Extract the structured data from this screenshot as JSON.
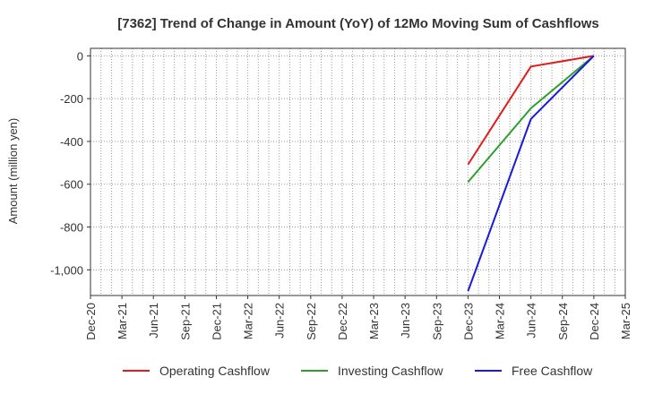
{
  "chart_data": {
    "type": "line",
    "title": "[7362]  Trend of Change in Amount (YoY) of 12Mo Moving Sum of Cashflows",
    "ylabel": "Amount (million yen)",
    "xlabel": "",
    "x_ticks": [
      "Dec-20",
      "Mar-21",
      "Jun-21",
      "Sep-21",
      "Dec-21",
      "Mar-22",
      "Jun-22",
      "Sep-22",
      "Dec-22",
      "Mar-23",
      "Jun-23",
      "Sep-23",
      "Dec-23",
      "Mar-24",
      "Jun-24",
      "Sep-24",
      "Dec-24",
      "Mar-25"
    ],
    "ylim": [
      -1120,
      35
    ],
    "y_ticks": [
      0,
      -200,
      -400,
      -600,
      -800,
      -1000
    ],
    "y_tick_labels": [
      "0",
      "-200",
      "-400",
      "-600",
      "-800",
      "-1,000"
    ],
    "grid": true,
    "legend_position": "bottom",
    "x": [
      "Dec-23",
      "Jun-24",
      "Dec-24"
    ],
    "series": [
      {
        "name": "Operating Cashflow",
        "color": "#e31a1c",
        "values": [
          -508,
          -50,
          0
        ]
      },
      {
        "name": "Investing Cashflow",
        "color": "#2ca02c",
        "values": [
          -590,
          -245,
          0
        ]
      },
      {
        "name": "Free Cashflow",
        "color": "#1a1adc",
        "values": [
          -1100,
          -295,
          0
        ]
      }
    ]
  }
}
